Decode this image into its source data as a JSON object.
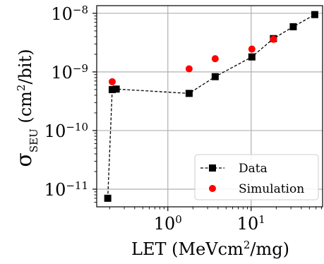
{
  "chart_data": {
    "type": "scatter",
    "x_scale": "log",
    "y_scale": "log",
    "xlabel_base": "LET (MeVcm",
    "xlabel_sup": "2",
    "xlabel_tail": "/mg)",
    "ylabel_sigma": "σ",
    "ylabel_sub": "SEU",
    "ylabel_unit_head": " (cm",
    "ylabel_unit_sup": "2",
    "ylabel_unit_tail": "/bit)",
    "xlim": [
      0.14,
      72
    ],
    "ylim": [
      5e-12,
      1.35e-08
    ],
    "grid": true,
    "legend_position": "lower-right",
    "x_ticks": [
      {
        "value": 1,
        "base": "10",
        "exp": "0"
      },
      {
        "value": 10,
        "base": "10",
        "exp": "1"
      }
    ],
    "y_ticks": [
      {
        "value": 1e-11,
        "base": "10",
        "exp": "−11"
      },
      {
        "value": 1e-10,
        "base": "10",
        "exp": "−10"
      },
      {
        "value": 1e-09,
        "base": "10",
        "exp": "−9"
      },
      {
        "value": 1e-08,
        "base": "10",
        "exp": "−8"
      }
    ],
    "series": [
      {
        "name": "Data",
        "style": "dashed-line-square",
        "color": "#000000",
        "points": [
          {
            "x": 0.19,
            "y": 7e-12
          },
          {
            "x": 0.215,
            "y": 5e-10
          },
          {
            "x": 0.24,
            "y": 5.1e-10
          },
          {
            "x": 1.8,
            "y": 4.3e-10
          },
          {
            "x": 3.7,
            "y": 8.3e-10
          },
          {
            "x": 10.2,
            "y": 1.8e-09
          },
          {
            "x": 18.5,
            "y": 3.7e-09
          },
          {
            "x": 32,
            "y": 5.9e-09
          },
          {
            "x": 58,
            "y": 9.5e-09
          }
        ]
      },
      {
        "name": "Simulation",
        "style": "circle",
        "color": "#ff0000",
        "points": [
          {
            "x": 0.215,
            "y": 6.8e-10
          },
          {
            "x": 1.8,
            "y": 1.13e-09
          },
          {
            "x": 3.7,
            "y": 1.68e-09
          },
          {
            "x": 10.2,
            "y": 2.45e-09
          },
          {
            "x": 18.5,
            "y": 3.6e-09
          }
        ]
      }
    ]
  }
}
